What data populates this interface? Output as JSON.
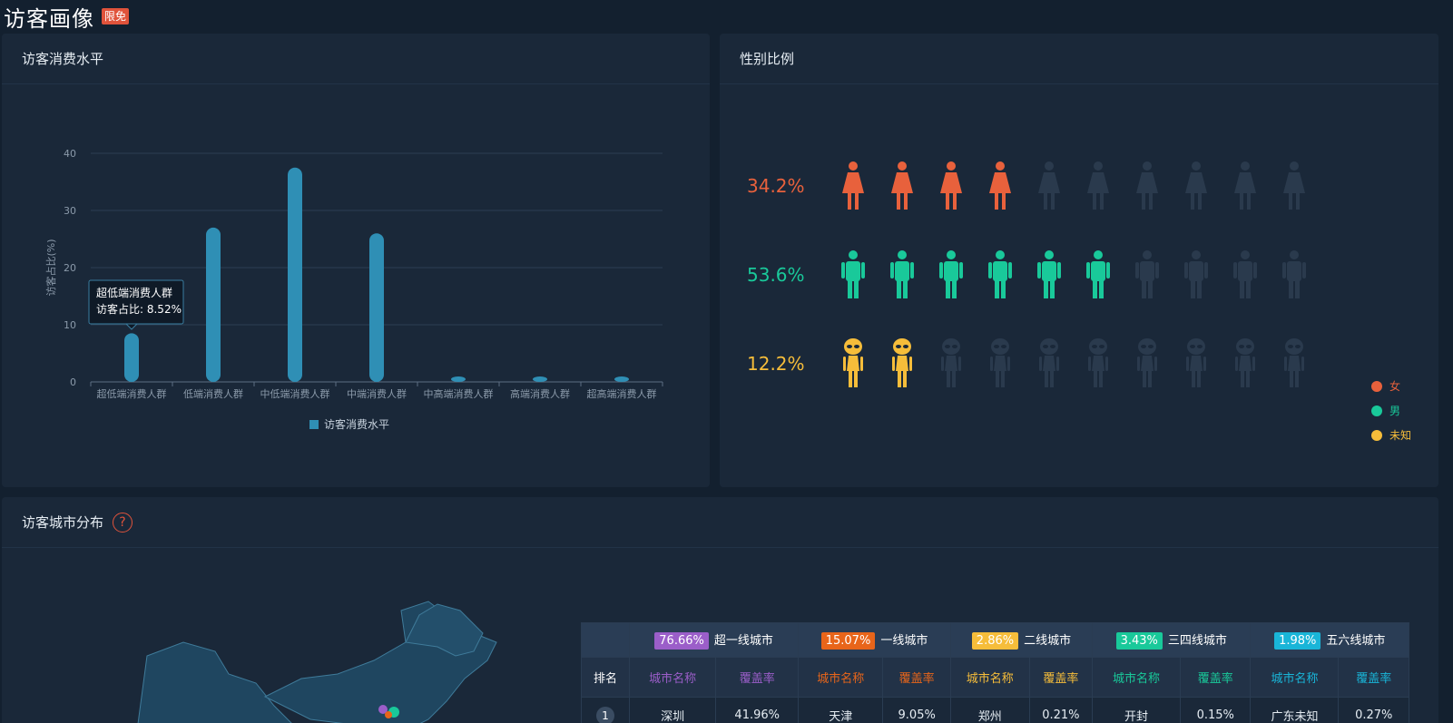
{
  "page": {
    "title": "访客画像",
    "badge": "限免"
  },
  "consume_panel": {
    "title": "访客消费水平",
    "tooltip": {
      "title": "超低端消费人群",
      "label": "访客占比: 8.52%"
    }
  },
  "chart_data": {
    "type": "bar",
    "categories": [
      "超低端消费人群",
      "低端消费人群",
      "中低端消费人群",
      "中端消费人群",
      "中高端消费人群",
      "高端消费人群",
      "超高端消费人群"
    ],
    "series": [
      {
        "name": "访客消费水平",
        "values": [
          8.52,
          27,
          37.5,
          26,
          0.5,
          0.4,
          0.3
        ]
      }
    ],
    "ylabel": "访客占比(%)",
    "ylim": [
      0,
      40
    ],
    "yticks": [
      "0",
      "10",
      "20",
      "30",
      "40"
    ],
    "legend": "bottom",
    "grid": true,
    "colors": {
      "bar": "#2f8fb5"
    }
  },
  "gender_panel": {
    "title": "性别比例",
    "rows": [
      {
        "pct": "34.2%",
        "color": "#e8613c",
        "filled": 4,
        "kind": "female"
      },
      {
        "pct": "53.6%",
        "color": "#19c99a",
        "filled": 6,
        "kind": "male"
      },
      {
        "pct": "12.2%",
        "color": "#f6bd3a",
        "filled": 2,
        "kind": "alien"
      }
    ],
    "legend": [
      {
        "label": "女",
        "color": "#e8613c"
      },
      {
        "label": "男",
        "color": "#19c99a"
      },
      {
        "label": "未知",
        "color": "#f6bd3a"
      }
    ]
  },
  "city_panel": {
    "title": "访客城市分布",
    "help_icon": "question-icon",
    "rank_header": "排名",
    "tiers": [
      {
        "pct": "76.66%",
        "name": "超一线城市",
        "color": "#9b5ec9",
        "col_city": "城市名称",
        "col_rate": "覆盖率"
      },
      {
        "pct": "15.07%",
        "name": "一线城市",
        "color": "#e8651a",
        "col_city": "城市名称",
        "col_rate": "覆盖率"
      },
      {
        "pct": "2.86%",
        "name": "二线城市",
        "color": "#f6bd3a",
        "col_city": "城市名称",
        "col_rate": "覆盖率"
      },
      {
        "pct": "3.43%",
        "name": "三四线城市",
        "color": "#19c99a",
        "col_city": "城市名称",
        "col_rate": "覆盖率"
      },
      {
        "pct": "1.98%",
        "name": "五六线城市",
        "color": "#19b5d8",
        "col_city": "城市名称",
        "col_rate": "覆盖率"
      }
    ],
    "rows": [
      {
        "rank": "1",
        "cells": [
          "深圳",
          "41.96%",
          "天津",
          "9.05%",
          "郑州",
          "0.21%",
          "开封",
          "0.15%",
          "广东未知",
          "0.27%"
        ]
      }
    ]
  }
}
